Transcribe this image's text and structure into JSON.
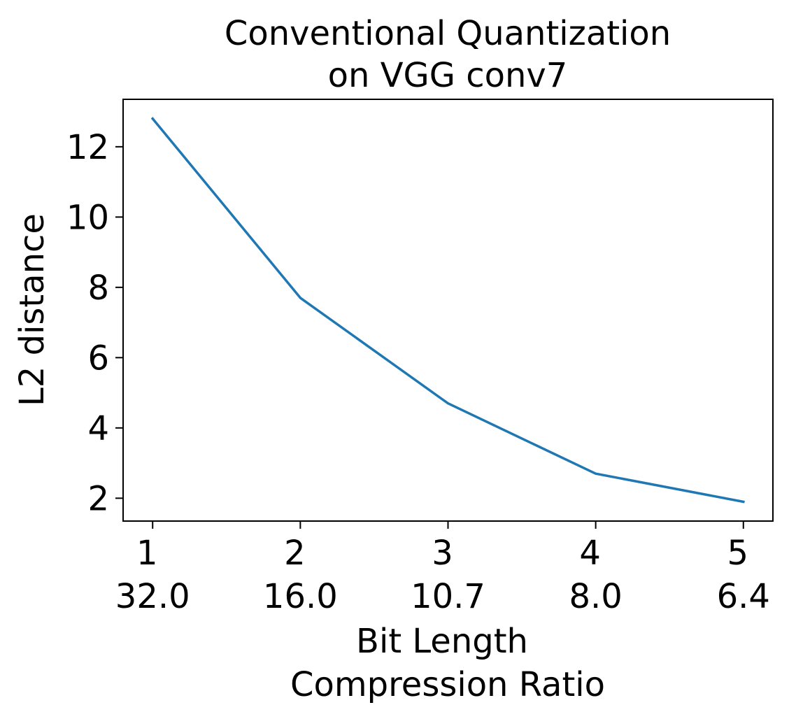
{
  "chart_data": {
    "type": "line",
    "title": [
      "Conventional Quantization",
      "on VGG conv7"
    ],
    "xlabel": [
      "Bit Length",
      "Compression Ratio"
    ],
    "ylabel": "L2 distance",
    "x": [
      1,
      2,
      3,
      4,
      5
    ],
    "xticks": [
      1,
      2,
      3,
      4,
      5
    ],
    "xtick_labels": [
      [
        "1",
        "32.0"
      ],
      [
        "2",
        "16.0"
      ],
      [
        "3",
        "10.7"
      ],
      [
        "4",
        "8.0"
      ],
      [
        "5",
        "6.4"
      ]
    ],
    "yticks": [
      2,
      4,
      6,
      8,
      10,
      12
    ],
    "ytick_labels": [
      "2",
      "4",
      "6",
      "8",
      "10",
      "12"
    ],
    "xlim": [
      0.8,
      5.2
    ],
    "ylim": [
      1.35,
      13.35
    ],
    "grid": false,
    "series": [
      {
        "values": [
          12.8,
          7.7,
          4.7,
          2.7,
          1.9
        ],
        "color": "#1f77b4"
      }
    ]
  }
}
